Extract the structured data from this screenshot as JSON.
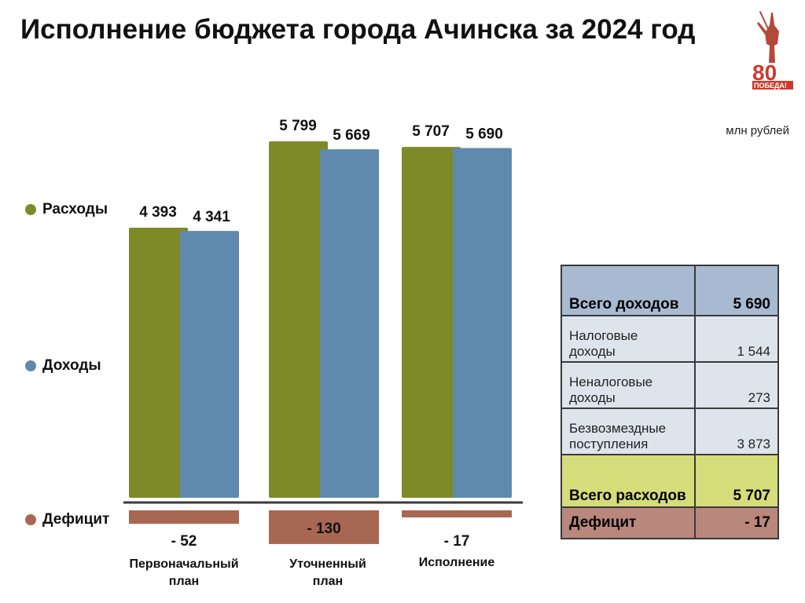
{
  "title": "Исполнение бюджета города Ачинска за 2024 год",
  "unit_label": "млн рублей",
  "logo_text": "80 ПОБЕДА!",
  "legend": [
    {
      "label": "Расходы",
      "color": "#7e8a27"
    },
    {
      "label": "Доходы",
      "color": "#5f8aae"
    },
    {
      "label": "Дефицит",
      "color": "#a86752"
    }
  ],
  "chart_data": {
    "type": "bar",
    "categories": [
      "Первоначальный план",
      "Уточненный план",
      "Исполнение"
    ],
    "series": [
      {
        "name": "Расходы",
        "values": [
          4393,
          5799,
          5707
        ],
        "labels": [
          "4 393",
          "5 799",
          "5 707"
        ],
        "color": "#7e8a27"
      },
      {
        "name": "Доходы",
        "values": [
          4341,
          5669,
          5690
        ],
        "labels": [
          "4 341",
          "5 669",
          "5 690"
        ],
        "color": "#5f8aae"
      },
      {
        "name": "Дефицит",
        "values": [
          -52,
          -130,
          -17
        ],
        "labels": [
          "- 52",
          "- 130",
          "- 17"
        ],
        "color": "#a86752"
      }
    ]
  },
  "table": {
    "total_income": {
      "label": "Всего доходов",
      "value": "5 690"
    },
    "rows": [
      {
        "label": "Налоговые доходы",
        "value": "1 544"
      },
      {
        "label": "Неналоговые доходы",
        "value": "273"
      },
      {
        "label": "Безвозмездные поступления",
        "value": "3 873"
      }
    ],
    "total_expense": {
      "label": "Всего расходов",
      "value": "5 707"
    },
    "deficit": {
      "label": "Дефицит",
      "value": "- 17"
    }
  }
}
